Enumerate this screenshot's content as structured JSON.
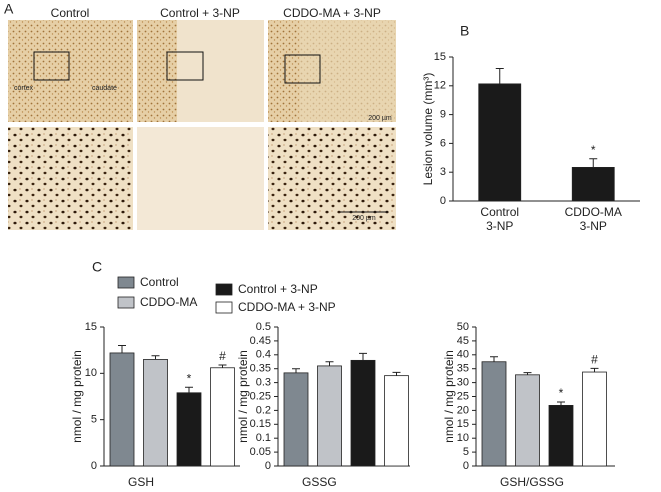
{
  "panel_a": {
    "label": "A",
    "columns": [
      "Control",
      "Control + 3-NP",
      "CDDO-MA + 3-NP"
    ],
    "region_labels": [
      "cortex",
      "caudate"
    ],
    "scale_bars": [
      "200 µm",
      "200 µm"
    ]
  },
  "chart_data": [
    {
      "type": "bar",
      "label": "B",
      "ylabel": "Lesion volume (mm³)",
      "categories": [
        "Control\n3-NP",
        "CDDO-MA\n3-NP"
      ],
      "values": [
        12.2,
        3.5
      ],
      "errors": [
        1.6,
        0.9
      ],
      "annotations": [
        null,
        "*"
      ],
      "color": "#1a1a1a",
      "ylim": [
        0,
        15
      ],
      "yticks": [
        0,
        3,
        6,
        9,
        12,
        15
      ]
    },
    {
      "type": "bar",
      "label": "C",
      "ylabel": "nmol / mg protein",
      "categories": [
        "GSH",
        "GSSG",
        "GSH/GSSG"
      ],
      "panels": [
        {
          "ylim": [
            0,
            15
          ],
          "yticks": [
            0,
            5,
            10,
            15
          ]
        },
        {
          "ylim": [
            0,
            0.5
          ],
          "yticks": [
            0,
            0.05,
            0.1,
            0.15,
            0.2,
            0.25,
            0.3,
            0.35,
            0.4,
            0.45,
            0.5
          ]
        },
        {
          "ylim": [
            0,
            50
          ],
          "yticks": [
            0,
            5,
            10,
            15,
            20,
            25,
            30,
            35,
            40,
            45,
            50
          ]
        }
      ],
      "series": [
        {
          "name": "Control",
          "color": "#7f8890",
          "values": [
            12.2,
            0.335,
            37.5
          ],
          "errors": [
            0.8,
            0.015,
            1.8
          ],
          "annotations": [
            null,
            null,
            null
          ]
        },
        {
          "name": "CDDO-MA",
          "color": "#c0c3c8",
          "values": [
            11.5,
            0.36,
            32.8
          ],
          "errors": [
            0.4,
            0.015,
            0.8
          ],
          "annotations": [
            null,
            null,
            null
          ]
        },
        {
          "name": "Control + 3-NP",
          "color": "#1a1a1a",
          "values": [
            7.9,
            0.38,
            21.8
          ],
          "errors": [
            0.6,
            0.025,
            1.2
          ],
          "annotations": [
            "*",
            null,
            "*"
          ]
        },
        {
          "name": "CDDO-MA + 3-NP",
          "color": "#ffffff",
          "values": [
            10.6,
            0.325,
            33.8
          ],
          "errors": [
            0.3,
            0.012,
            1.3
          ],
          "annotations": [
            "#",
            null,
            "#"
          ]
        }
      ]
    }
  ]
}
